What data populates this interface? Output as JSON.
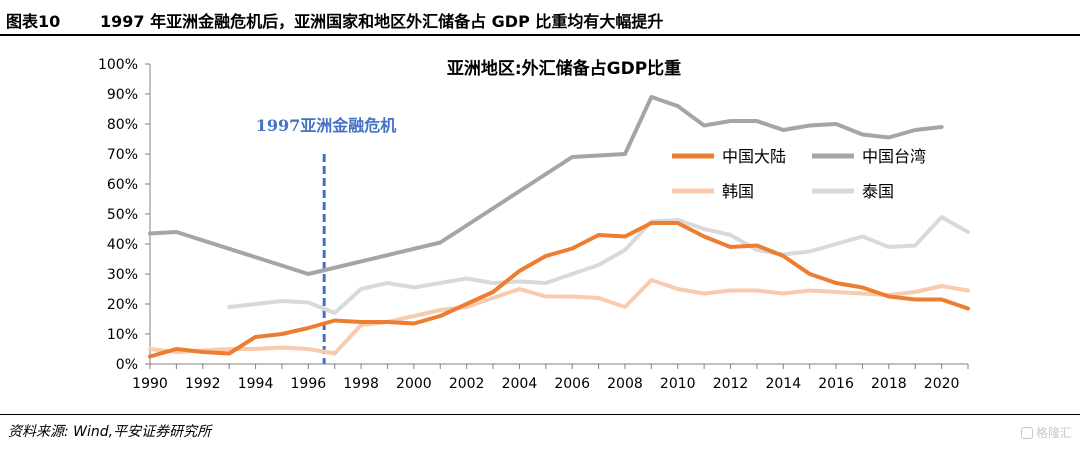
{
  "header": {
    "figure_label": "图表10",
    "figure_title": "1997 年亚洲金融危机后，亚洲国家和地区外汇储备占 GDP 比重均有大幅提升"
  },
  "footer": {
    "source": "资料来源: Wind,平安证券研究所",
    "watermark": "格隆汇"
  },
  "chart_data": {
    "type": "line",
    "title": "亚洲地区:外汇储备占GDP比重",
    "xlabel": "",
    "ylabel": "",
    "xlim": [
      1990,
      2021
    ],
    "ylim": [
      0,
      100
    ],
    "x_ticks": [
      "1990",
      "1992",
      "1994",
      "1996",
      "1998",
      "2000",
      "2002",
      "2004",
      "2006",
      "2008",
      "2010",
      "2012",
      "2014",
      "2016",
      "2018",
      "2020"
    ],
    "y_ticks": [
      "0%",
      "10%",
      "20%",
      "30%",
      "40%",
      "50%",
      "60%",
      "70%",
      "80%",
      "90%",
      "100%"
    ],
    "grid": false,
    "legend_position": "right",
    "annotation": {
      "text": "1997亚洲金融危机",
      "x": 1996.6,
      "color": "#4472C4"
    },
    "series": [
      {
        "name": "中国大陆",
        "color": "#ED7D31",
        "x": [
          1990,
          1991,
          1992,
          1993,
          1994,
          1995,
          1996,
          1997,
          1998,
          1999,
          2000,
          2001,
          2002,
          2003,
          2004,
          2005,
          2006,
          2007,
          2008,
          2009,
          2010,
          2011,
          2012,
          2013,
          2014,
          2015,
          2016,
          2017,
          2018,
          2019,
          2020,
          2021
        ],
        "y": [
          2.5,
          5,
          4,
          3.5,
          9,
          10,
          12,
          14.5,
          14,
          14,
          13.5,
          16,
          20,
          24,
          31,
          36,
          38.5,
          43,
          42.5,
          47,
          47,
          42.5,
          39,
          39.5,
          36,
          30,
          27,
          25.5,
          22.5,
          21.5,
          21.5,
          18.5
        ]
      },
      {
        "name": "中国台湾",
        "color": "#A5A5A5",
        "x": [
          1990,
          1991,
          1996,
          2001,
          2006,
          2008,
          2009,
          2010,
          2011,
          2012,
          2013,
          2014,
          2015,
          2016,
          2017,
          2018,
          2019,
          2020
        ],
        "y": [
          43.5,
          44,
          30,
          40.5,
          69,
          70,
          89,
          86,
          79.5,
          81,
          81,
          78,
          79.5,
          80,
          76.5,
          75.5,
          78,
          79
        ]
      },
      {
        "name": "韩国",
        "color": "#F8CBAD",
        "x": [
          1990,
          1991,
          1992,
          1993,
          1994,
          1995,
          1996,
          1997,
          1998,
          1999,
          2000,
          2001,
          2002,
          2003,
          2004,
          2005,
          2006,
          2007,
          2008,
          2009,
          2010,
          2011,
          2012,
          2013,
          2014,
          2015,
          2016,
          2017,
          2018,
          2019,
          2020,
          2021
        ],
        "y": [
          5,
          4,
          4.5,
          5,
          5,
          5.5,
          5,
          3.5,
          13,
          14,
          16,
          18,
          19,
          22,
          25,
          22.5,
          22.5,
          22,
          19,
          28,
          25,
          23.5,
          24.5,
          24.5,
          23.5,
          24.5,
          24,
          23.5,
          23,
          24,
          26,
          24.5
        ]
      },
      {
        "name": "泰国",
        "color": "#D9D9D9",
        "x": [
          1993,
          1994,
          1995,
          1996,
          1997,
          1998,
          1999,
          2000,
          2001,
          2002,
          2003,
          2004,
          2005,
          2006,
          2007,
          2008,
          2009,
          2010,
          2011,
          2012,
          2013,
          2014,
          2015,
          2016,
          2017,
          2018,
          2019,
          2020,
          2021
        ],
        "y": [
          19,
          20,
          21,
          20.5,
          17,
          25,
          27,
          25.5,
          27,
          28.5,
          27,
          27.5,
          27,
          30,
          33,
          38,
          47.5,
          48,
          45,
          43,
          38,
          36.5,
          37.5,
          40,
          42.5,
          39,
          39.5,
          49,
          44
        ]
      }
    ]
  }
}
